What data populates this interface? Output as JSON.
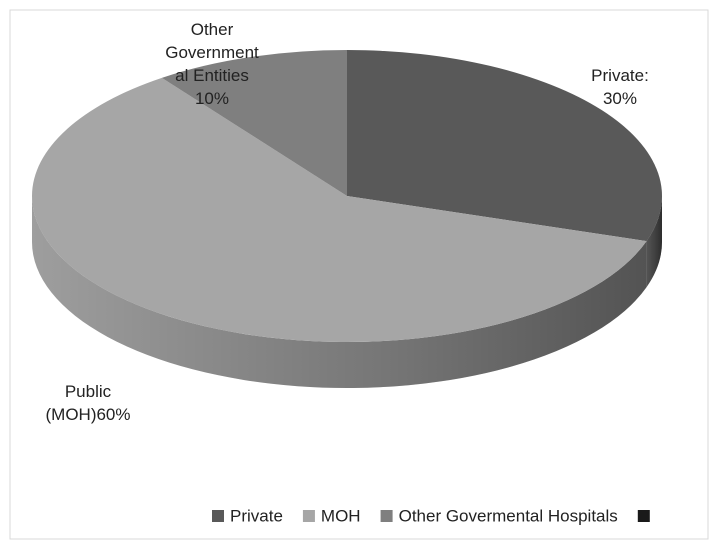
{
  "chart_data": {
    "type": "pie3d",
    "categories": [
      "Private",
      "MOH",
      "Other Govermental Hospitals",
      null
    ],
    "values": [
      30,
      60,
      10,
      0
    ],
    "value_labels": [
      "Private:\n30%",
      "Public\n(MOH)60%",
      "Other\nGovernment\nal Entities\n10%",
      null
    ],
    "colors": [
      "#595959",
      "#a6a6a6",
      "#7f7f7f",
      "#1a1a1a"
    ],
    "legend": "bottom"
  }
}
